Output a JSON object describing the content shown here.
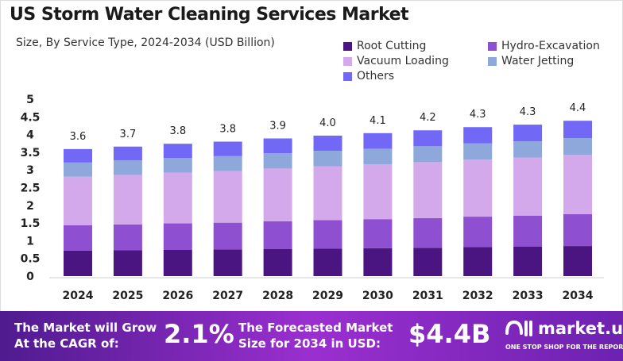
{
  "chart_data": {
    "type": "bar",
    "stacked": true,
    "title": "US Storm Water Cleaning Services Market",
    "subtitle": "Size, By Service Type, 2024-2034 (USD Billion)",
    "categories": [
      "2024",
      "2025",
      "2026",
      "2027",
      "2028",
      "2029",
      "2030",
      "2031",
      "2032",
      "2033",
      "2034"
    ],
    "series": [
      {
        "name": "Root Cutting",
        "color": "#4a1580",
        "values": [
          0.72,
          0.73,
          0.74,
          0.75,
          0.77,
          0.78,
          0.79,
          0.8,
          0.82,
          0.83,
          0.85
        ]
      },
      {
        "name": "Hydro-Excavation",
        "color": "#8e4fd0",
        "values": [
          0.72,
          0.73,
          0.75,
          0.76,
          0.78,
          0.8,
          0.82,
          0.84,
          0.86,
          0.88,
          0.9
        ]
      },
      {
        "name": "Vacuum Loading",
        "color": "#d3a9ec",
        "values": [
          1.37,
          1.4,
          1.43,
          1.46,
          1.49,
          1.52,
          1.55,
          1.58,
          1.61,
          1.64,
          1.68
        ]
      },
      {
        "name": "Water Jetting",
        "color": "#8fa8dc",
        "values": [
          0.4,
          0.41,
          0.42,
          0.42,
          0.43,
          0.44,
          0.44,
          0.45,
          0.46,
          0.46,
          0.47
        ]
      },
      {
        "name": "Others",
        "color": "#7168f5",
        "values": [
          0.38,
          0.39,
          0.4,
          0.41,
          0.42,
          0.43,
          0.44,
          0.45,
          0.46,
          0.47,
          0.49
        ]
      }
    ],
    "totals": [
      "3.6",
      "3.7",
      "3.8",
      "3.8",
      "3.9",
      "4.0",
      "4.1",
      "4.2",
      "4.3",
      "4.3",
      "4.4"
    ],
    "yticks": [
      "0",
      "0.5",
      "1",
      "1.5",
      "2",
      "2.5",
      "3",
      "3.5",
      "4",
      "4.5",
      "5"
    ],
    "ylim": [
      0,
      5
    ],
    "grid": false,
    "legend": "top-right"
  },
  "footer": {
    "cagr_label_1": "The Market will Grow",
    "cagr_label_2": "At the CAGR of:",
    "cagr_value": "2.1%",
    "forecast_label_1": "The Forecasted Market",
    "forecast_label_2": "Size for 2034 in USD:",
    "forecast_value": "$4.4B",
    "brand": "market.us",
    "tagline": "ONE STOP SHOP FOR THE REPORTS"
  }
}
